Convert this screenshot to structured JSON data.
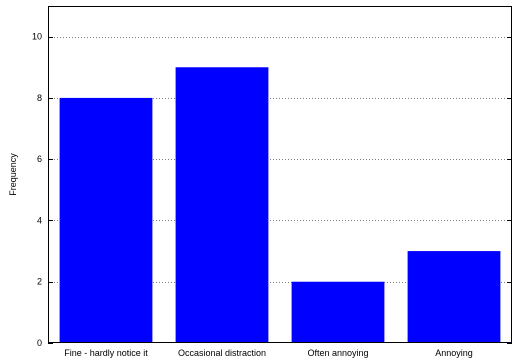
{
  "chart_data": {
    "type": "bar",
    "categories": [
      "Fine - hardly notice it",
      "Occasional distraction",
      "Often annoying",
      "Annoying"
    ],
    "values": [
      8,
      9,
      2,
      3
    ],
    "ylabel": "Frequency",
    "xlabel": "",
    "ylim": [
      0,
      11
    ],
    "yticks": [
      0,
      2,
      4,
      6,
      8,
      10
    ],
    "grid": "y-dotted",
    "bar_color": "#0000ff"
  }
}
